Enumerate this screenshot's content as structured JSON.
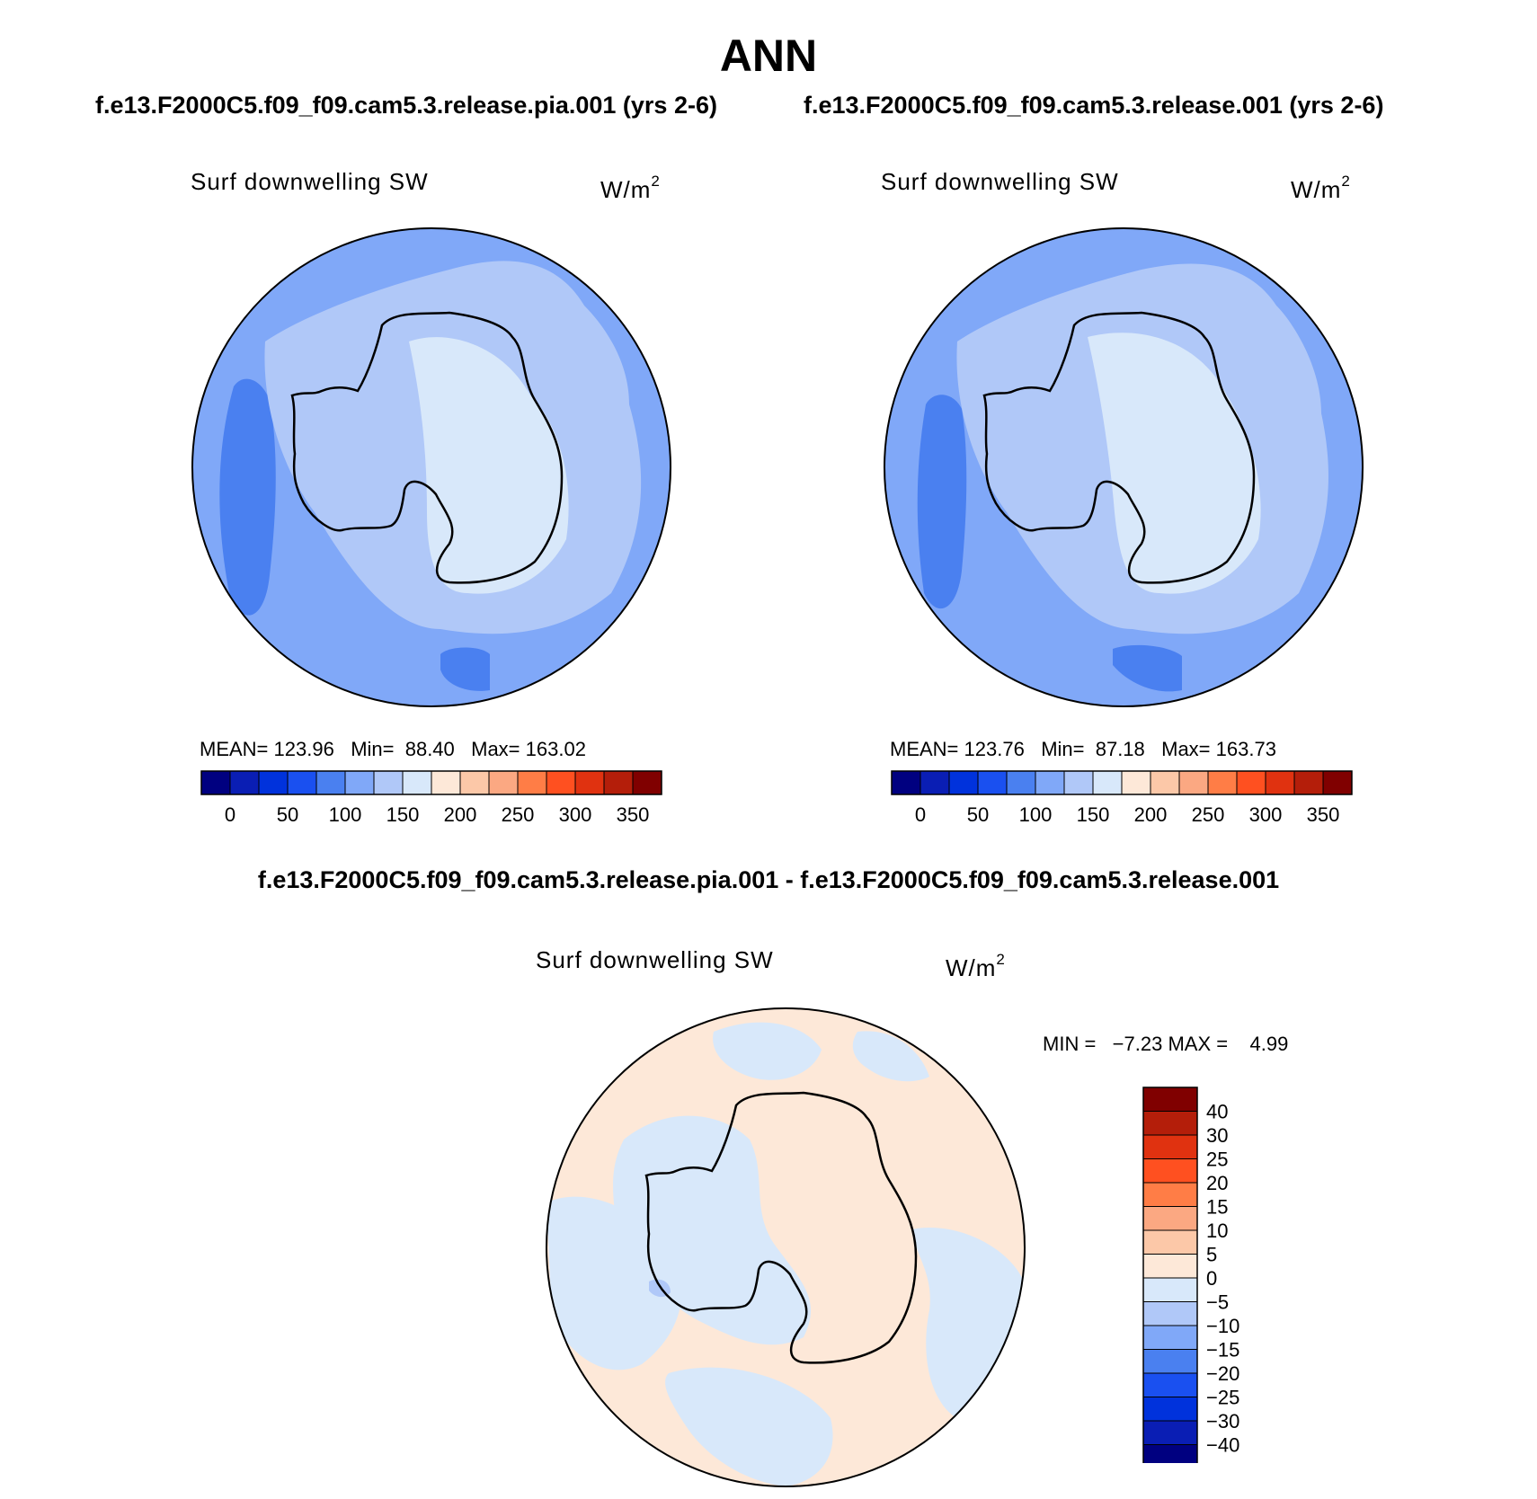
{
  "title": "ANN",
  "case_left": "f.e13.F2000C5.f09_f09.cam5.3.release.pia.001 (yrs 2-6)",
  "case_right": "f.e13.F2000C5.f09_f09.cam5.3.release.001 (yrs 2-6)",
  "diff_title": "f.e13.F2000C5.f09_f09.cam5.3.release.pia.001 - f.e13.F2000C5.f09_f09.cam5.3.release.001",
  "variable": "Surf downwelling SW",
  "units_base": "W/m",
  "units_exp": "2",
  "panels": [
    {
      "mean_label": "MEAN=",
      "mean": "123.96",
      "min_label": "Min=",
      "min": "88.40",
      "max_label": "Max=",
      "max": "163.02"
    },
    {
      "mean_label": "MEAN=",
      "mean": "123.76",
      "min_label": "Min=",
      "min": "87.18",
      "max_label": "Max=",
      "max": "163.73"
    }
  ],
  "diff": {
    "min_label": "MIN =",
    "min": "−7.23",
    "max_label": "MAX =",
    "max": "4.99"
  },
  "colorbar_h": {
    "colors": [
      "#000080",
      "#0a1eb4",
      "#0032dc",
      "#1a50f0",
      "#4a80f0",
      "#80a8f8",
      "#b0c8f8",
      "#d8e8fa",
      "#fde8d8",
      "#fcc8a8",
      "#fba882",
      "#ff7d46",
      "#ff5020",
      "#e03210",
      "#b41e0a",
      "#800000"
    ],
    "labels": [
      "0",
      "50",
      "100",
      "150",
      "200",
      "250",
      "300",
      "350"
    ]
  },
  "colorbar_v": {
    "colors": [
      "#800000",
      "#b41e0a",
      "#e03210",
      "#ff5020",
      "#ff7d46",
      "#fba882",
      "#fcc8a8",
      "#fde8d8",
      "#d8e8fa",
      "#b0c8f8",
      "#80a8f8",
      "#4a80f0",
      "#1a50f0",
      "#0032dc",
      "#0a1eb4",
      "#000080"
    ],
    "labels": [
      "40",
      "30",
      "25",
      "20",
      "15",
      "10",
      "5",
      "0",
      "−5",
      "−10",
      "−15",
      "−20",
      "−25",
      "−30",
      "−40"
    ]
  },
  "map_colors": {
    "ocean_base": "#80a8f8",
    "darker_ocean": "#4a80f0",
    "sea_ice_zone": "#b0c8f8",
    "plateau": "#d8e8fa",
    "diff_positive": "#fde8d8",
    "diff_negative": "#d8e8fa",
    "diff_strong_negative": "#b0c8f8",
    "coastline": "#000000"
  }
}
